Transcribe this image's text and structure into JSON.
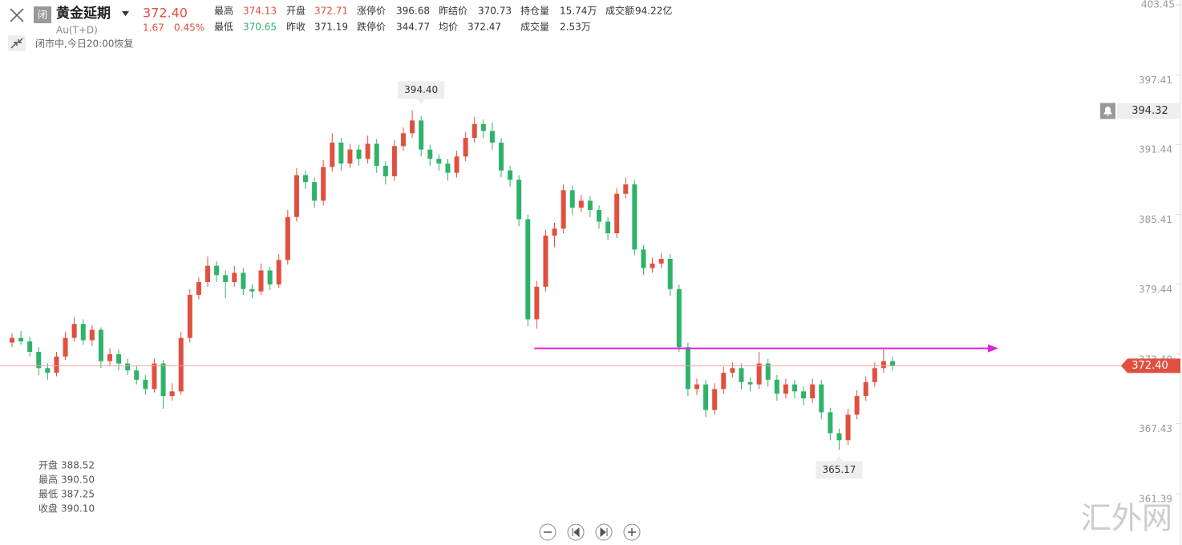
{
  "header": {
    "badge": "闭",
    "name": "黄金延期",
    "price": "372.40",
    "code": "Au(T+D)",
    "change": "1.67",
    "change_pct": "0.45%",
    "status": "闭市中,今日20:00恢复",
    "stats": [
      [
        {
          "label": "最高",
          "value": "374.13"
        },
        {
          "label": "开盘",
          "value": "372.71"
        },
        {
          "label": "涨停价",
          "value": "396.68"
        },
        {
          "label": "昨结价",
          "value": "370.73"
        },
        {
          "label": "持仓量",
          "value": "15.74万"
        },
        {
          "label": "成交额",
          "value": "94.22亿"
        }
      ],
      [
        {
          "label": "最低",
          "value": "370.65"
        },
        {
          "label": "昨收",
          "value": "371.19"
        },
        {
          "label": "跌停价",
          "value": "344.77"
        },
        {
          "label": "均价",
          "value": "372.47"
        },
        {
          "label": "成交量",
          "value": "2.53万"
        }
      ]
    ]
  },
  "chart_data": {
    "type": "candlestick",
    "up_color": "#e0503f",
    "down_color": "#2fb36a",
    "ylim": [
      359.4,
      403.45
    ],
    "yticks": [
      403.45,
      397.41,
      391.44,
      385.41,
      379.44,
      {
        "value": 373.4,
        "label": "373.40"
      },
      367.43,
      361.39
    ],
    "ohlc": [
      [
        374.4,
        375.2,
        374.0,
        374.8
      ],
      [
        374.8,
        375.4,
        374.2,
        374.5
      ],
      [
        374.5,
        374.9,
        373.2,
        373.6
      ],
      [
        373.6,
        374.0,
        371.6,
        372.2
      ],
      [
        372.2,
        372.6,
        371.2,
        371.8
      ],
      [
        371.8,
        373.6,
        371.5,
        373.2
      ],
      [
        373.2,
        375.3,
        372.9,
        374.8
      ],
      [
        374.8,
        376.6,
        374.5,
        376.0
      ],
      [
        376.0,
        376.4,
        374.2,
        374.6
      ],
      [
        374.6,
        375.9,
        374.1,
        375.5
      ],
      [
        375.5,
        375.7,
        372.2,
        372.8
      ],
      [
        372.8,
        373.9,
        372.4,
        373.4
      ],
      [
        373.4,
        373.8,
        372.0,
        372.6
      ],
      [
        372.6,
        373.0,
        371.6,
        372.0
      ],
      [
        372.0,
        372.4,
        370.8,
        371.2
      ],
      [
        371.2,
        371.6,
        369.9,
        370.4
      ],
      [
        370.4,
        373.0,
        370.1,
        372.6
      ],
      [
        372.6,
        372.9,
        368.7,
        369.8
      ],
      [
        369.8,
        370.9,
        369.4,
        370.2
      ],
      [
        370.2,
        375.3,
        369.9,
        374.8
      ],
      [
        374.8,
        379.0,
        374.4,
        378.5
      ],
      [
        378.5,
        380.0,
        378.1,
        379.6
      ],
      [
        379.6,
        381.8,
        379.2,
        381.0
      ],
      [
        381.0,
        381.4,
        379.6,
        380.2
      ],
      [
        380.2,
        380.6,
        378.2,
        379.6
      ],
      [
        379.6,
        381.0,
        379.2,
        380.4
      ],
      [
        380.4,
        380.8,
        378.5,
        379.0
      ],
      [
        379.0,
        379.4,
        378.2,
        378.8
      ],
      [
        378.8,
        381.2,
        378.5,
        380.6
      ],
      [
        380.6,
        380.9,
        378.9,
        379.4
      ],
      [
        379.4,
        382.0,
        379.1,
        381.5
      ],
      [
        381.5,
        385.8,
        381.1,
        385.2
      ],
      [
        385.2,
        389.4,
        384.8,
        388.8
      ],
      [
        388.8,
        389.2,
        387.6,
        388.2
      ],
      [
        388.2,
        388.6,
        386.0,
        386.6
      ],
      [
        386.6,
        390.1,
        386.2,
        389.5
      ],
      [
        389.5,
        392.4,
        389.1,
        391.6
      ],
      [
        391.6,
        392.0,
        389.2,
        389.8
      ],
      [
        389.8,
        391.5,
        389.4,
        391.0
      ],
      [
        391.0,
        391.4,
        389.6,
        390.2
      ],
      [
        390.2,
        392.2,
        389.8,
        391.5
      ],
      [
        391.5,
        391.9,
        389.0,
        389.6
      ],
      [
        389.6,
        390.0,
        388.0,
        388.7
      ],
      [
        388.7,
        391.8,
        388.3,
        391.3
      ],
      [
        391.3,
        392.9,
        390.9,
        392.4
      ],
      [
        392.4,
        394.4,
        392.0,
        393.5
      ],
      [
        393.5,
        393.9,
        390.4,
        391.0
      ],
      [
        391.0,
        391.4,
        389.6,
        390.2
      ],
      [
        390.2,
        390.6,
        389.2,
        389.8
      ],
      [
        389.8,
        390.2,
        388.3,
        389.0
      ],
      [
        389.0,
        390.9,
        388.6,
        390.4
      ],
      [
        390.4,
        392.5,
        390.0,
        392.0
      ],
      [
        392.0,
        393.8,
        391.6,
        393.2
      ],
      [
        393.2,
        393.6,
        392.0,
        392.6
      ],
      [
        392.6,
        393.3,
        391.0,
        391.6
      ],
      [
        391.6,
        392.0,
        388.6,
        389.2
      ],
      [
        389.2,
        389.6,
        387.8,
        388.4
      ],
      [
        388.4,
        388.8,
        384.4,
        385.0
      ],
      [
        385.0,
        385.4,
        375.8,
        376.4
      ],
      [
        376.4,
        379.7,
        375.6,
        379.2
      ],
      [
        379.2,
        384.1,
        378.8,
        383.6
      ],
      [
        383.6,
        384.7,
        382.6,
        384.2
      ],
      [
        384.2,
        388.0,
        383.8,
        387.5
      ],
      [
        387.5,
        387.9,
        385.4,
        386.0
      ],
      [
        386.0,
        387.1,
        385.6,
        386.6
      ],
      [
        386.6,
        387.0,
        385.2,
        385.8
      ],
      [
        385.8,
        386.2,
        384.2,
        384.8
      ],
      [
        384.8,
        385.2,
        383.2,
        383.8
      ],
      [
        383.8,
        387.7,
        383.4,
        387.2
      ],
      [
        387.2,
        388.6,
        386.8,
        388.0
      ],
      [
        388.0,
        388.4,
        381.9,
        382.4
      ],
      [
        382.4,
        382.8,
        380.2,
        380.8
      ],
      [
        380.8,
        381.7,
        380.4,
        381.2
      ],
      [
        381.2,
        382.1,
        380.8,
        381.6
      ],
      [
        381.6,
        382.0,
        378.4,
        379.0
      ],
      [
        379.0,
        379.4,
        373.6,
        374.0
      ],
      [
        374.0,
        374.4,
        369.8,
        370.4
      ],
      [
        370.4,
        371.3,
        369.9,
        370.8
      ],
      [
        370.8,
        371.2,
        368.0,
        368.6
      ],
      [
        368.6,
        370.9,
        368.2,
        370.4
      ],
      [
        370.4,
        372.3,
        370.0,
        371.8
      ],
      [
        371.8,
        372.7,
        371.4,
        372.2
      ],
      [
        372.2,
        372.6,
        370.4,
        371.0
      ],
      [
        371.0,
        371.4,
        370.2,
        370.8
      ],
      [
        370.8,
        373.6,
        370.4,
        372.6
      ],
      [
        372.6,
        373.0,
        370.6,
        371.2
      ],
      [
        371.2,
        371.6,
        369.4,
        370.0
      ],
      [
        370.0,
        371.3,
        369.6,
        370.8
      ],
      [
        370.8,
        371.2,
        369.6,
        370.2
      ],
      [
        370.2,
        370.6,
        369.0,
        369.6
      ],
      [
        369.6,
        371.3,
        369.2,
        370.8
      ],
      [
        370.8,
        371.2,
        367.8,
        368.4
      ],
      [
        368.4,
        368.8,
        366.0,
        366.6
      ],
      [
        366.6,
        367.0,
        365.17,
        366.0
      ],
      [
        366.0,
        368.7,
        365.6,
        368.2
      ],
      [
        368.2,
        370.3,
        367.8,
        369.8
      ],
      [
        369.8,
        371.5,
        369.4,
        371.0
      ],
      [
        371.0,
        372.7,
        370.6,
        372.2
      ],
      [
        372.2,
        373.8,
        371.8,
        372.8
      ],
      [
        372.8,
        373.2,
        372.0,
        372.4
      ]
    ],
    "max_label": {
      "value": 394.4,
      "label": "394.40"
    },
    "min_label": 365.17,
    "current_price": {
      "value": 372.4,
      "label": "372.40"
    },
    "alert_price": 394.32,
    "drawn_line": {
      "value": 373.9,
      "color": "#e020e0"
    }
  },
  "info_panel": [
    {
      "label": "开盘",
      "value": "388.52"
    },
    {
      "label": "最高",
      "value": "390.50"
    },
    {
      "label": "最低",
      "value": "387.25"
    },
    {
      "label": "收盘",
      "value": "390.10"
    }
  ],
  "watermark": "汇外网"
}
